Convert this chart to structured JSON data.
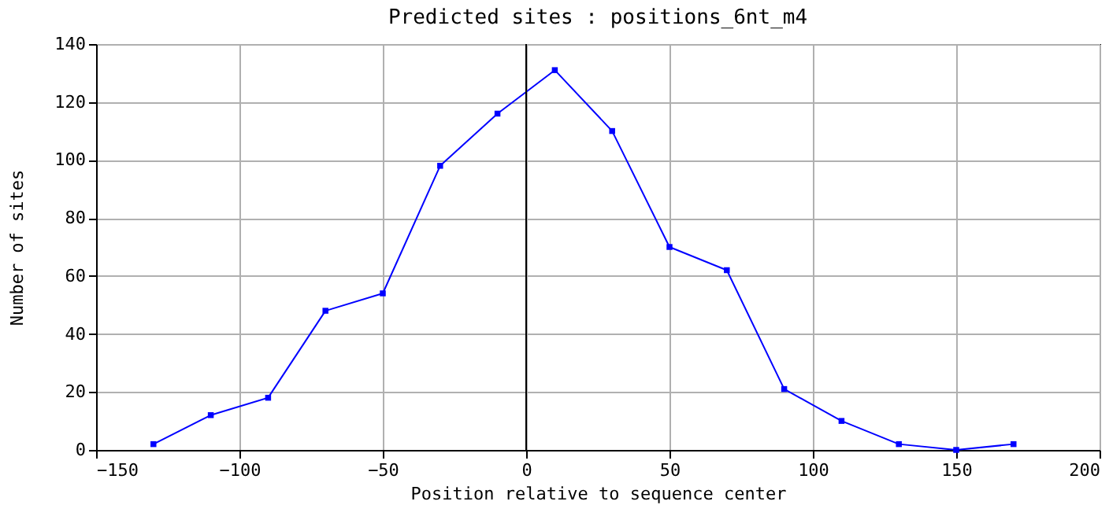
{
  "chart_data": {
    "type": "line",
    "title": "Predicted sites : positions_6nt_m4",
    "xlabel": "Position relative to sequence center",
    "ylabel": "Number of sites",
    "x": [
      -130,
      -110,
      -90,
      -70,
      -50,
      -30,
      -10,
      10,
      30,
      50,
      70,
      90,
      110,
      130,
      150,
      170
    ],
    "series": [
      {
        "color": "#0000ff",
        "values": [
          2,
          12,
          18,
          48,
          54,
          98,
          116,
          131,
          110,
          70,
          62,
          21,
          10,
          2,
          0,
          2
        ]
      }
    ],
    "xlim": [
      -150,
      200
    ],
    "xticks": [
      -150,
      -100,
      -50,
      0,
      50,
      100,
      150,
      200
    ],
    "ylim": [
      0,
      140
    ],
    "yticks": [
      0,
      20,
      40,
      60,
      80,
      100,
      120,
      140
    ],
    "ref_lines": [
      {
        "axis": "x",
        "value": 0,
        "color": "#000000"
      }
    ],
    "grid": true,
    "marker": "square",
    "line_style": "solid"
  }
}
